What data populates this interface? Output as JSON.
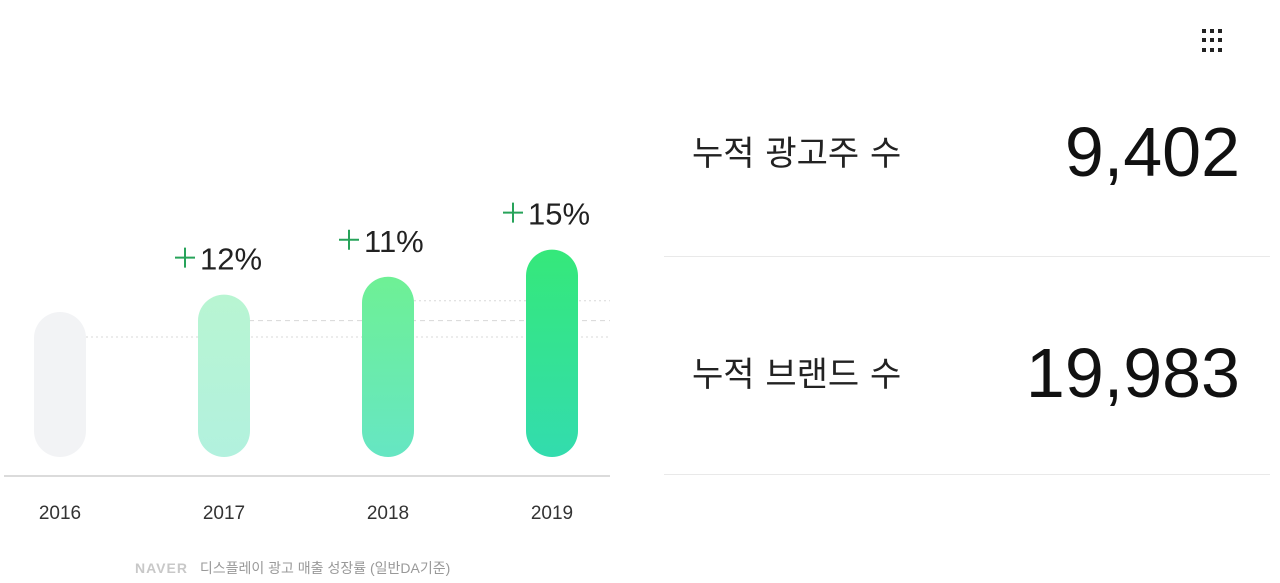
{
  "chart_data": {
    "type": "bar",
    "categories": [
      "2016",
      "2017",
      "2018",
      "2019"
    ],
    "values": [
      100,
      112,
      124.3,
      143
    ],
    "growth_labels": [
      "",
      "12%",
      "11%",
      "15%"
    ],
    "title": "",
    "xlabel": "",
    "ylabel": "",
    "colors": {
      "2016": [
        "#f2f3f5",
        "#f2f3f5"
      ],
      "2017": [
        "#b8f5d2",
        "#b2f1de"
      ],
      "2018": [
        "#6ef095",
        "#66e6c3"
      ],
      "2019": [
        "#35e87a",
        "#33dcae"
      ]
    },
    "grid": "dashed reference lines"
  },
  "caption": {
    "brand": "NAVER",
    "text": "디스플레이 광고 매출 성장률 (일반DA기준)"
  },
  "stats": [
    {
      "label": "누적 광고주 수",
      "value": "9,402"
    },
    {
      "label": "누적 브랜드 수",
      "value": "19,983"
    }
  ],
  "menu_icon": "grid-menu-icon"
}
